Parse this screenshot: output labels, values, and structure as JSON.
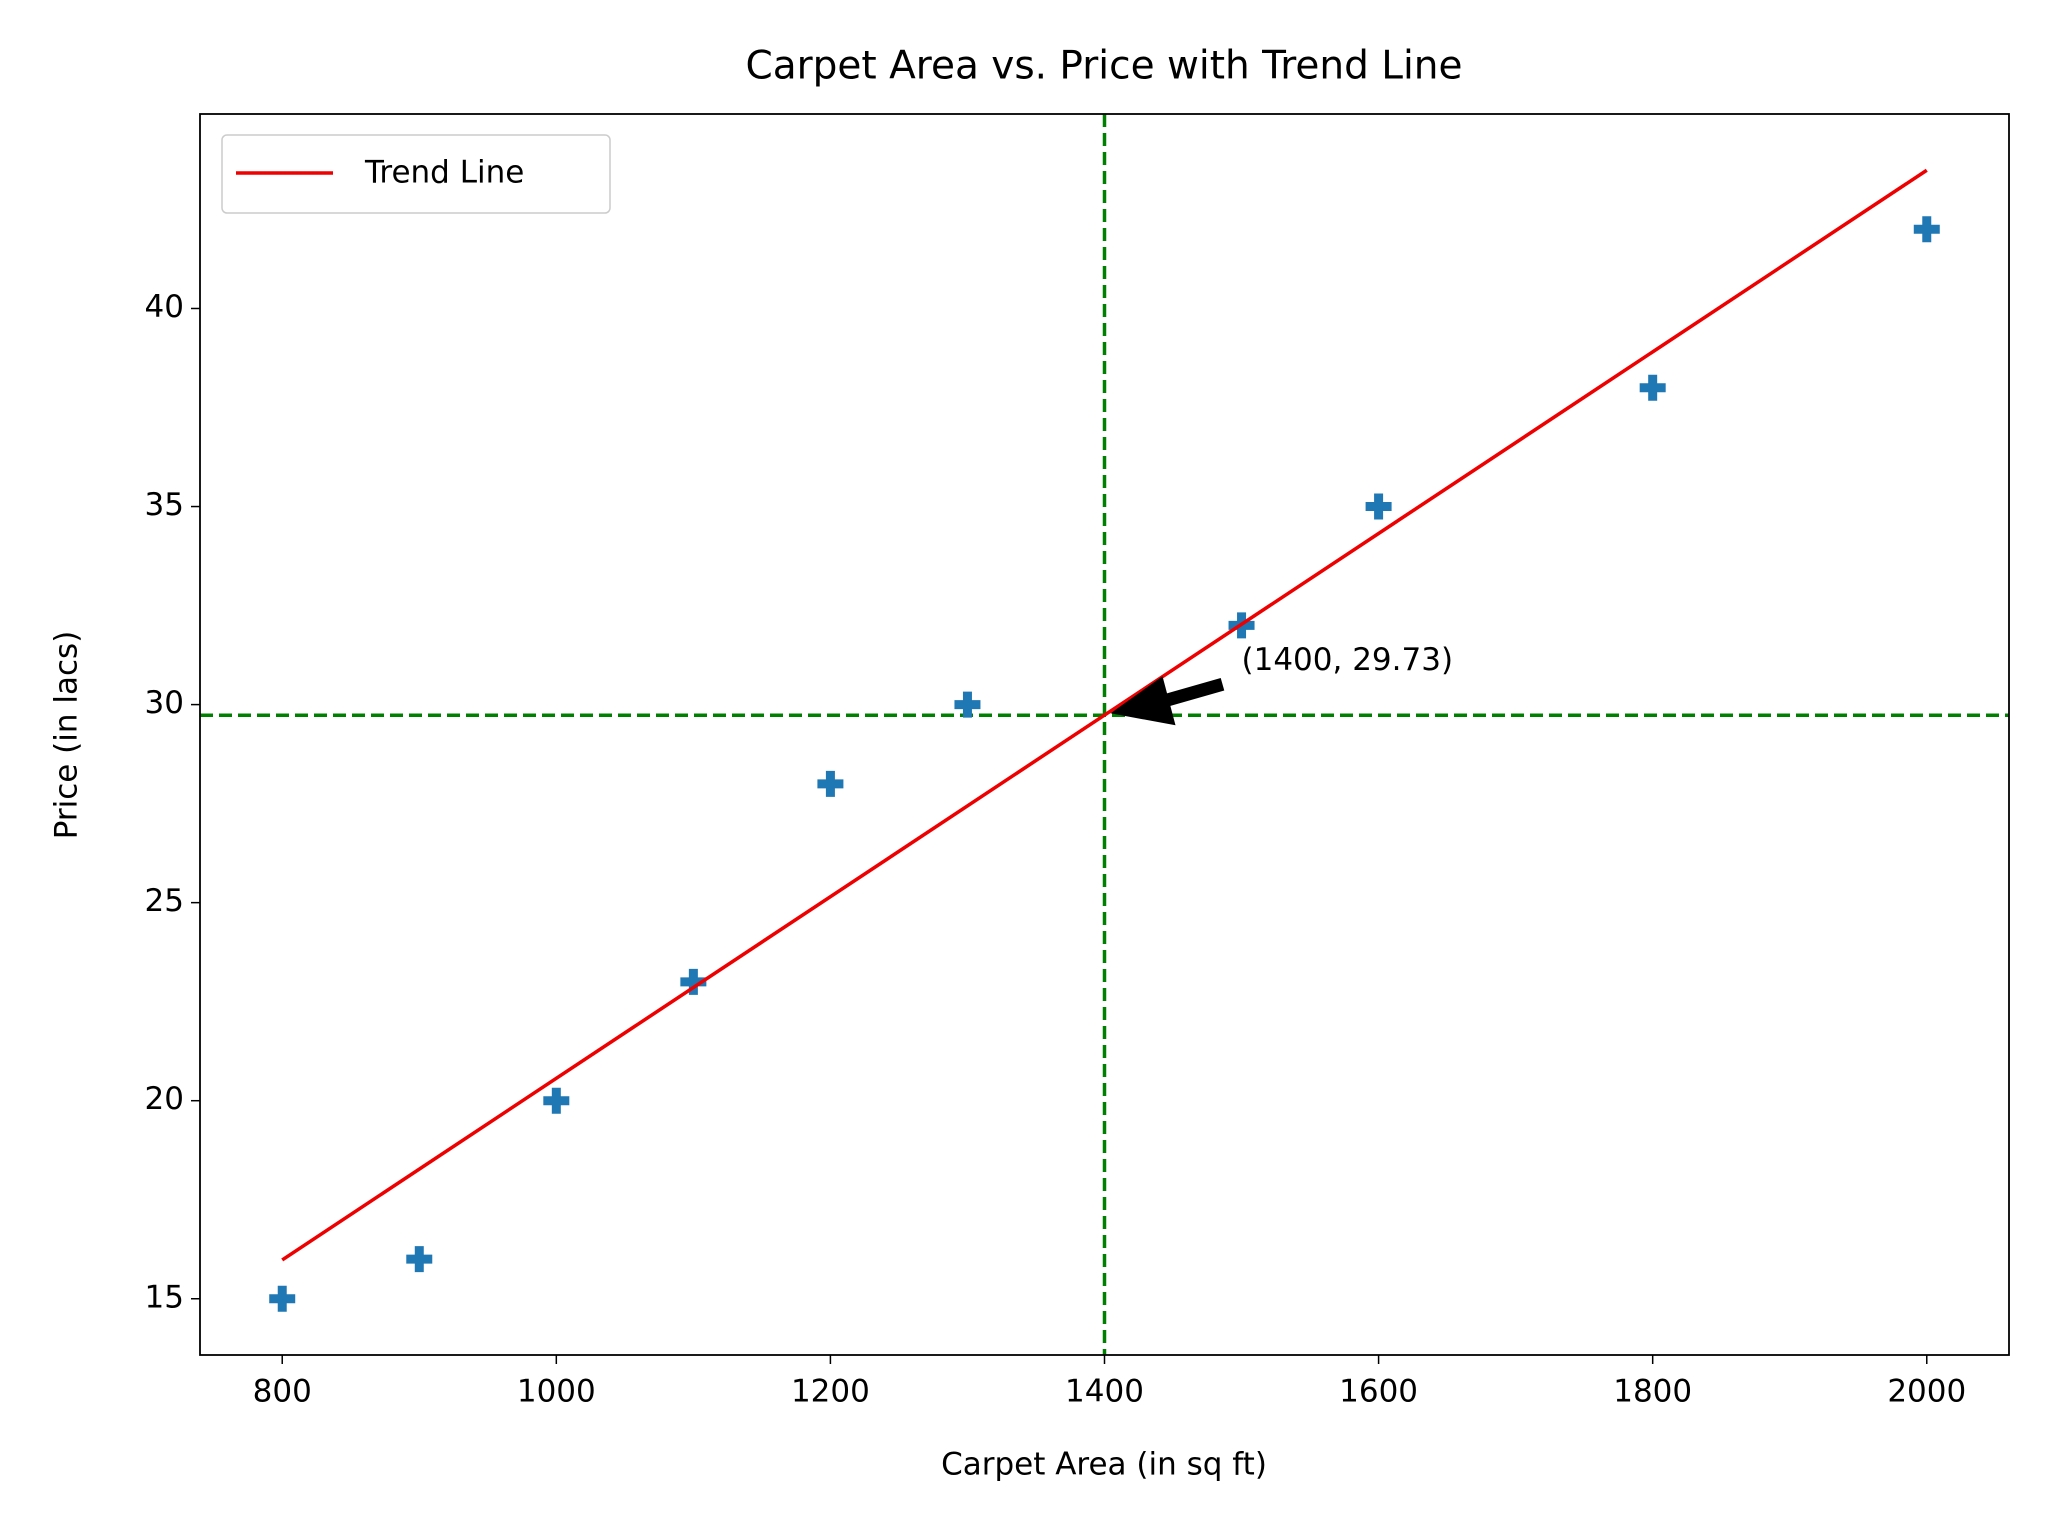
{
  "chart_data": {
    "type": "scatter",
    "title": "Carpet Area vs. Price with Trend Line",
    "x_label": "Carpet Area (in sq ft)",
    "y_label": "Price (in lacs)",
    "x": [
      800,
      900,
      1000,
      1100,
      1200,
      1300,
      1500,
      1600,
      1800,
      2000
    ],
    "values": [
      15,
      16,
      20,
      23,
      28,
      30,
      32,
      35,
      38,
      42
    ],
    "color": "#1f77b4",
    "trend_line": {
      "name": "Trend Line",
      "color": "#ee0000",
      "x": [
        800,
        2000
      ],
      "values": [
        15.98,
        43.49
      ]
    },
    "reference_lines": {
      "x": 1400,
      "y": 29.73,
      "color": "#008000"
    },
    "annotation": "(1400, 29.73)",
    "xlim": [
      740,
      2060
    ],
    "ylim": [
      13.58,
      44.91
    ],
    "xticks": [
      800,
      1000,
      1200,
      1400,
      1600,
      1800,
      2000
    ],
    "yticks": [
      15,
      20,
      25,
      30,
      35,
      40
    ],
    "legend": "upper left"
  }
}
